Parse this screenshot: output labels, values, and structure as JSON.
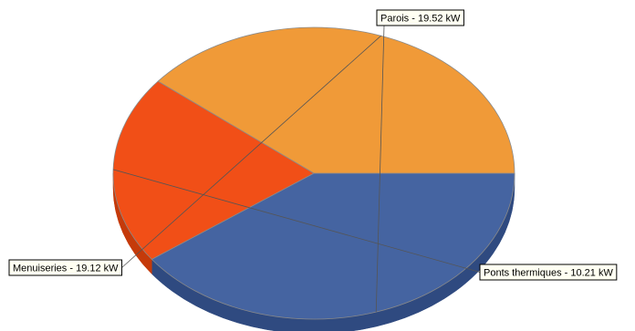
{
  "chart_data": {
    "type": "pie",
    "style": "3d",
    "title": "",
    "unit": "kW",
    "slices": [
      {
        "name": "Parois",
        "value": 19.52,
        "label": "Parois - 19.52 kW",
        "color": "#4564a1",
        "side_color": "#2f4a80"
      },
      {
        "name": "Ponts thermiques",
        "value": 10.21,
        "label": "Ponts thermiques - 10.21 kW",
        "color": "#f14f17",
        "side_color": "#c53a0a"
      },
      {
        "name": "Menuiseries",
        "value": 19.12,
        "label": "Menuiseries - 19.12 kW",
        "color": "#f09a38",
        "side_color": "#cf7a1f"
      }
    ],
    "legend": "none",
    "labels": "callout boxes with leader lines"
  }
}
